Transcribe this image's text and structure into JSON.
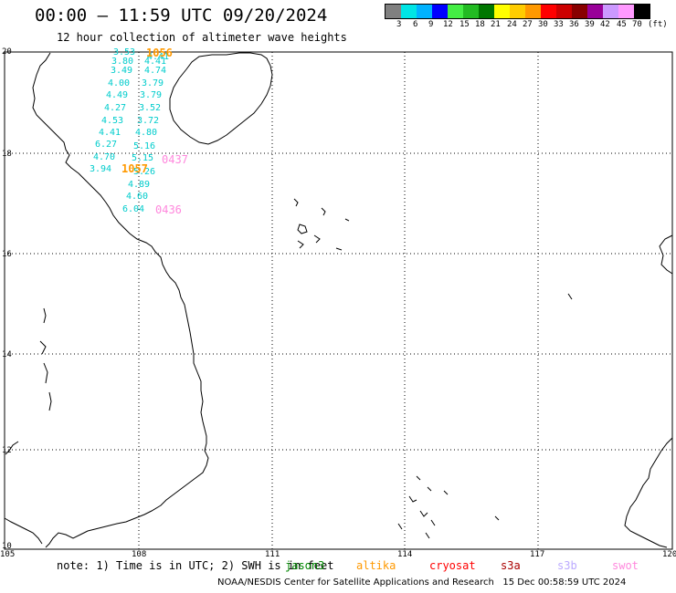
{
  "title": "00:00 – 11:59 UTC 09/20/2024",
  "subtitle": "12 hour collection of altimeter wave heights",
  "legend": {
    "colors": [
      "#808080",
      "#00e5e5",
      "#00b2ff",
      "#0000ff",
      "#44ee44",
      "#22bb22",
      "#007700",
      "#ffff00",
      "#ffcc00",
      "#ff9900",
      "#ff0000",
      "#cc0000",
      "#880000",
      "#990099",
      "#cc99ff",
      "#ff99ff",
      "#000000"
    ],
    "labels": [
      "3",
      "6",
      "9",
      "12",
      "15",
      "18",
      "21",
      "24",
      "27",
      "30",
      "33",
      "36",
      "39",
      "42",
      "45",
      "70",
      "(ft)"
    ]
  },
  "axes": {
    "lat_labels": [
      "20",
      "18",
      "16",
      "14",
      "12",
      "10"
    ],
    "lon_labels": [
      "105",
      "108",
      "111",
      "114",
      "117",
      "120"
    ]
  },
  "wave_heights": [
    {
      "value": "3.53",
      "color": "#00cccc"
    },
    {
      "value": "4.41",
      "color": "#00cccc"
    },
    {
      "value": "3.80",
      "color": "#00cccc"
    },
    {
      "value": "4.41",
      "color": "#00cccc"
    },
    {
      "value": "3.49",
      "color": "#00cccc"
    },
    {
      "value": "4.74",
      "color": "#00cccc"
    },
    {
      "value": "4.00",
      "color": "#00cccc"
    },
    {
      "value": "3.79",
      "color": "#00cccc"
    },
    {
      "value": "4.49",
      "color": "#00cccc"
    },
    {
      "value": "3.79",
      "color": "#00cccc"
    },
    {
      "value": "4.27",
      "color": "#00cccc"
    },
    {
      "value": "3.52",
      "color": "#00cccc"
    },
    {
      "value": "4.53",
      "color": "#00cccc"
    },
    {
      "value": "3.72",
      "color": "#00cccc"
    },
    {
      "value": "4.41",
      "color": "#00cccc"
    },
    {
      "value": "4.80",
      "color": "#00cccc"
    },
    {
      "value": "6.27",
      "color": "#00cccc"
    },
    {
      "value": "5.16",
      "color": "#00cccc"
    },
    {
      "value": "4.70",
      "color": "#00cccc"
    },
    {
      "value": "5.15",
      "color": "#00cccc"
    },
    {
      "value": "3.94",
      "color": "#00cccc"
    },
    {
      "value": "5.26",
      "color": "#00cccc"
    },
    {
      "value": "4.89",
      "color": "#00cccc"
    },
    {
      "value": "4.60",
      "color": "#00cccc"
    },
    {
      "value": "6.04",
      "color": "#00cccc"
    }
  ],
  "pass_labels": [
    {
      "text": "1056",
      "color": "#ff9900"
    },
    {
      "text": "1057",
      "color": "#ff9900"
    },
    {
      "text": "0437",
      "color": "#ff88dd"
    },
    {
      "text": "0436",
      "color": "#ff88dd"
    }
  ],
  "note": "note: 1) Time is in UTC; 2) SWH is in feet",
  "satellites": [
    {
      "name": "jason3",
      "color": "#008800"
    },
    {
      "name": "altika",
      "color": "#ff9900"
    },
    {
      "name": "cryosat",
      "color": "#ff0000"
    },
    {
      "name": "s3a",
      "color": "#aa0000"
    },
    {
      "name": "s3b",
      "color": "#bbaaff"
    },
    {
      "name": "swot",
      "color": "#ff88dd"
    }
  ],
  "footer": "NOAA/NESDIS Center for Satellite Applications and Research   15 Dec 00:58:59 UTC 2024"
}
